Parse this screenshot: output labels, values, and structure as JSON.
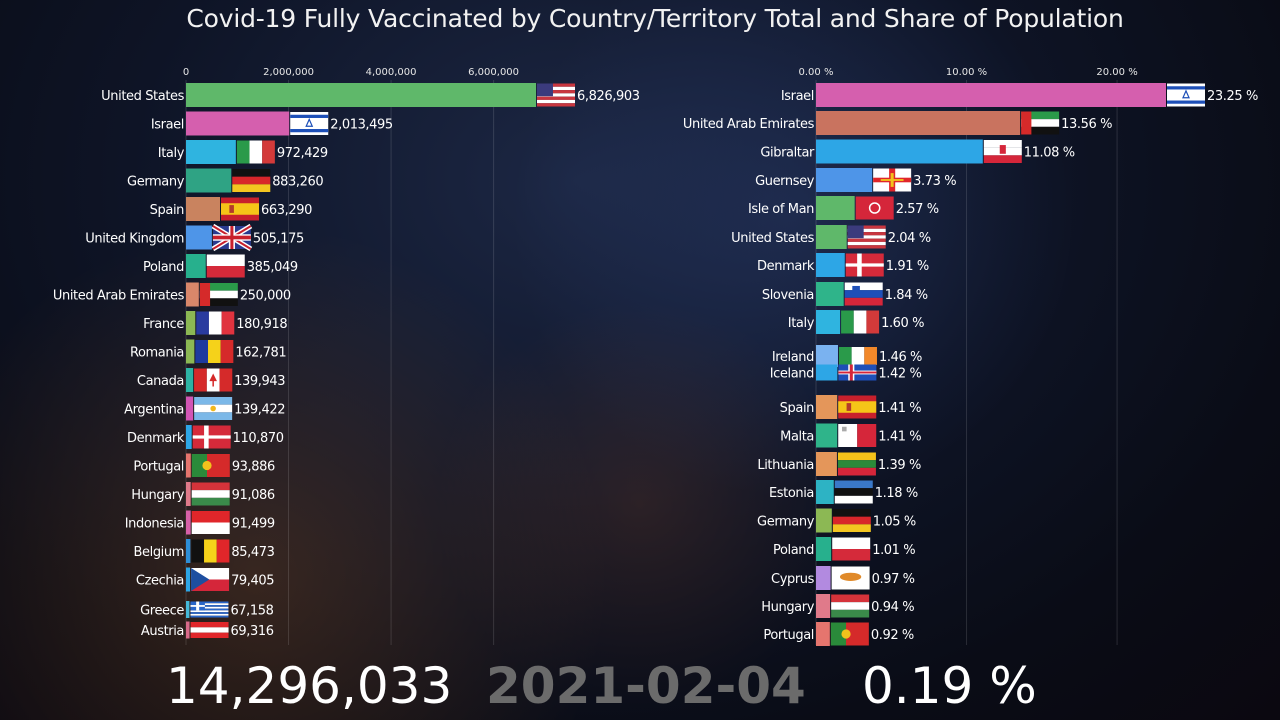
{
  "title": "Covid-19 Fully Vaccinated by Country/Territory Total and Share of Population",
  "footer": {
    "total": "14,296,033",
    "date": "2021-02-04",
    "share": "0.19 %"
  },
  "chart_data": [
    {
      "type": "bar",
      "orientation": "horizontal",
      "xlim": [
        0,
        6900000
      ],
      "ticks": [
        {
          "value": 0,
          "label": "0"
        },
        {
          "value": 2000000,
          "label": "2,000,000"
        },
        {
          "value": 4000000,
          "label": "4,000,000"
        },
        {
          "value": 6000000,
          "label": "6,000,000"
        }
      ],
      "grid": true,
      "bars": [
        {
          "category": "United States",
          "value": 6826903,
          "label": "6,826,903",
          "color": "#5fb86a",
          "flag": "us"
        },
        {
          "category": "Israel",
          "value": 2013495,
          "label": "2,013,495",
          "color": "#d55fae",
          "flag": "il"
        },
        {
          "category": "Italy",
          "value": 972429,
          "label": "972,429",
          "color": "#2fb4e0",
          "flag": "it"
        },
        {
          "category": "Germany",
          "value": 883260,
          "label": "883,260",
          "color": "#2fa384",
          "flag": "de"
        },
        {
          "category": "Spain",
          "value": 663290,
          "label": "663,290",
          "color": "#c9835f",
          "flag": "es"
        },
        {
          "category": "United Kingdom",
          "value": 505175,
          "label": "505,175",
          "color": "#4e95e8",
          "flag": "gb"
        },
        {
          "category": "Poland",
          "value": 385049,
          "label": "385,049",
          "color": "#27b08d",
          "flag": "pl"
        },
        {
          "category": "United Arab Emirates",
          "value": 250000,
          "label": "250,000",
          "color": "#d9876a",
          "flag": "ae"
        },
        {
          "category": "France",
          "value": 180918,
          "label": "180,918",
          "color": "#8cb854",
          "flag": "fr"
        },
        {
          "category": "Romania",
          "value": 162781,
          "label": "162,781",
          "color": "#8cb854",
          "flag": "ro"
        },
        {
          "category": "Canada",
          "value": 139943,
          "label": "139,943",
          "color": "#2db3a4",
          "flag": "ca"
        },
        {
          "category": "Argentina",
          "value": 139422,
          "label": "139,422",
          "color": "#d255b4",
          "flag": "ar"
        },
        {
          "category": "Denmark",
          "value": 110870,
          "label": "110,870",
          "color": "#2da6e6",
          "flag": "dk"
        },
        {
          "category": "Portugal",
          "value": 93886,
          "label": "93,886",
          "color": "#e5756e",
          "flag": "pt"
        },
        {
          "category": "Hungary",
          "value": 91086,
          "label": "91,086",
          "color": "#e07a8a",
          "flag": "hu"
        },
        {
          "category": "Indonesia",
          "value": 91499,
          "label": "91,499",
          "color": "#d760a8",
          "flag": "id"
        },
        {
          "category": "Belgium",
          "value": 85473,
          "label": "85,473",
          "color": "#2d8fd8",
          "flag": "be"
        },
        {
          "category": "Czechia",
          "value": 79405,
          "label": "79,405",
          "color": "#2da6e6",
          "flag": "cz"
        },
        {
          "category": "Greece",
          "value": 67158,
          "label": "67,158",
          "color": "#45b9d8",
          "flag": "gr"
        },
        {
          "category": "Austria",
          "value": 69316,
          "label": "69,316",
          "color": "#d86a8a",
          "flag": "at"
        }
      ]
    },
    {
      "type": "bar",
      "orientation": "horizontal",
      "xlim": [
        0,
        23.3
      ],
      "ticks": [
        {
          "value": 0,
          "label": "0.00 %"
        },
        {
          "value": 10,
          "label": "10.00 %"
        },
        {
          "value": 20,
          "label": "20.00 %"
        }
      ],
      "grid": true,
      "bars": [
        {
          "category": "Israel",
          "value": 23.25,
          "label": "23.25 %",
          "color": "#d55fae",
          "flag": "il"
        },
        {
          "category": "United Arab Emirates",
          "value": 13.56,
          "label": "13.56 %",
          "color": "#c9735f",
          "flag": "ae"
        },
        {
          "category": "Gibraltar",
          "value": 11.08,
          "label": "11.08 %",
          "color": "#2da6e6",
          "flag": "gi"
        },
        {
          "category": "Guernsey",
          "value": 3.73,
          "label": "3.73 %",
          "color": "#4e95e8",
          "flag": "gg"
        },
        {
          "category": "Isle of Man",
          "value": 2.57,
          "label": "2.57 %",
          "color": "#5fb86a",
          "flag": "im"
        },
        {
          "category": "United States",
          "value": 2.04,
          "label": "2.04 %",
          "color": "#5fb86a",
          "flag": "us"
        },
        {
          "category": "Denmark",
          "value": 1.91,
          "label": "1.91 %",
          "color": "#2da6e6",
          "flag": "dk"
        },
        {
          "category": "Slovenia",
          "value": 1.84,
          "label": "1.84 %",
          "color": "#2fb48a",
          "flag": "si"
        },
        {
          "category": "Italy",
          "value": 1.6,
          "label": "1.60 %",
          "color": "#2fb4e0",
          "flag": "it"
        },
        {
          "category": "Ireland",
          "value": 1.46,
          "label": "1.46 %",
          "color": "#7ab2f0",
          "flag": "ie"
        },
        {
          "category": "Iceland",
          "value": 1.42,
          "label": "1.42 %",
          "color": "#2da6e6",
          "flag": "is"
        },
        {
          "category": "Spain",
          "value": 1.41,
          "label": "1.41 %",
          "color": "#e4965a",
          "flag": "es"
        },
        {
          "category": "Malta",
          "value": 1.41,
          "label": "1.41 %",
          "color": "#2fb48a",
          "flag": "mt"
        },
        {
          "category": "Lithuania",
          "value": 1.39,
          "label": "1.39 %",
          "color": "#e4965a",
          "flag": "lt"
        },
        {
          "category": "Estonia",
          "value": 1.18,
          "label": "1.18 %",
          "color": "#2db3c4",
          "flag": "ee"
        },
        {
          "category": "Germany",
          "value": 1.05,
          "label": "1.05 %",
          "color": "#8cb854",
          "flag": "de"
        },
        {
          "category": "Poland",
          "value": 1.01,
          "label": "1.01 %",
          "color": "#27b08d",
          "flag": "pl"
        },
        {
          "category": "Cyprus",
          "value": 0.97,
          "label": "0.97 %",
          "color": "#b28ae0",
          "flag": "cy"
        },
        {
          "category": "Hungary",
          "value": 0.94,
          "label": "0.94 %",
          "color": "#e07a8a",
          "flag": "hu"
        },
        {
          "category": "Portugal",
          "value": 0.92,
          "label": "0.92 %",
          "color": "#e5756e",
          "flag": "pt"
        }
      ]
    }
  ]
}
